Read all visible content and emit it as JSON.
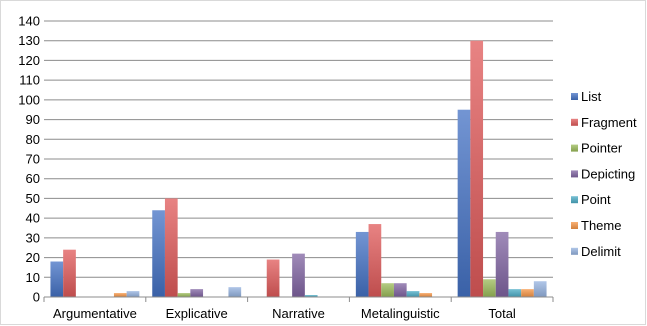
{
  "chart_data": {
    "type": "bar",
    "title": "",
    "xlabel": "",
    "ylabel": "",
    "ylim": [
      0,
      140
    ],
    "yticks": [
      0,
      10,
      20,
      30,
      40,
      50,
      60,
      70,
      80,
      90,
      100,
      110,
      120,
      130,
      140
    ],
    "grid": true,
    "legend_position": "right",
    "categories": [
      "Argumentative",
      "Explicative",
      "Narrative",
      "Metalinguistic",
      "Total"
    ],
    "series": [
      {
        "name": "List",
        "color": "#4472c4",
        "values": [
          18,
          44,
          0,
          33,
          95
        ]
      },
      {
        "name": "Fragment",
        "color": "#e05a5a",
        "values": [
          24,
          50,
          19,
          37,
          130
        ]
      },
      {
        "name": "Pointer",
        "color": "#9bbb59",
        "values": [
          0,
          2,
          0,
          7,
          9
        ]
      },
      {
        "name": "Depicting",
        "color": "#8064a2",
        "values": [
          0,
          4,
          22,
          7,
          33
        ]
      },
      {
        "name": "Point",
        "color": "#4bacc6",
        "values": [
          0,
          0,
          1,
          3,
          4
        ]
      },
      {
        "name": "Theme",
        "color": "#f79646",
        "values": [
          2,
          0,
          0,
          2,
          4
        ]
      },
      {
        "name": "Delimit",
        "color": "#95b3e0",
        "values": [
          3,
          5,
          0,
          0,
          8
        ]
      }
    ]
  }
}
